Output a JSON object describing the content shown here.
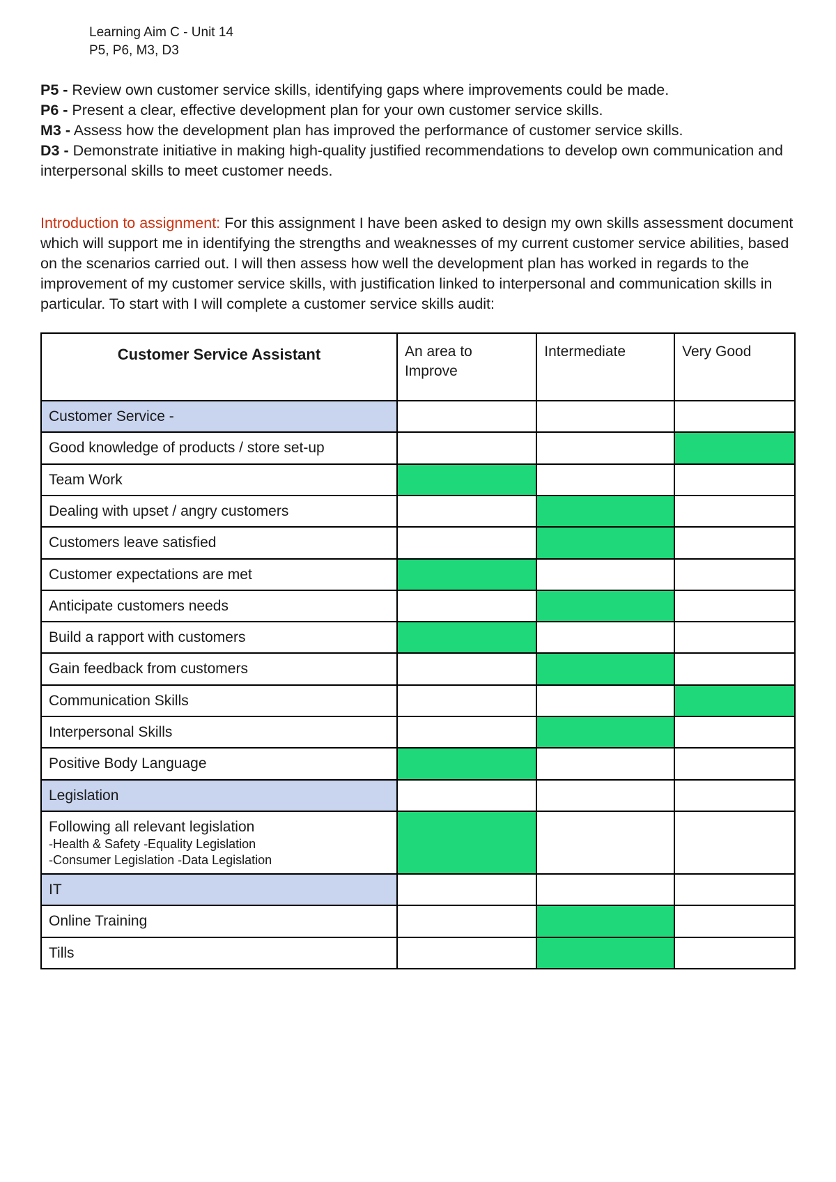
{
  "header": {
    "line1": "Learning Aim C - Unit 14",
    "line2": "P5, P6, M3, D3"
  },
  "criteria": [
    {
      "code": "P5 -",
      "text": " Review own customer service skills, identifying gaps where improvements could be made."
    },
    {
      "code": "P6 -",
      "text": " Present a clear, effective development plan for your own customer service skills."
    },
    {
      "code": "M3 -",
      "text": " Assess how the development plan has improved the performance of customer service skills."
    },
    {
      "code": "D3 -",
      "text": " Demonstrate initiative in making high-quality justified recommendations to develop own communication and interpersonal skills to meet customer needs."
    }
  ],
  "intro": {
    "label": "Introduction to assignment:",
    "text": " For this assignment I have been asked to design my own skills assessment document which will support me in identifying the strengths and weaknesses of my current customer service abilities, based on the scenarios carried out. I will then assess how well the development plan has worked in regards to the improvement of my customer service skills, with justification linked to interpersonal and communication skills in particular. To start with I will complete a customer service skills audit:"
  },
  "table": {
    "title": "Customer Service Assistant",
    "columns": [
      "An area to Improve",
      "Intermediate",
      "Very Good"
    ],
    "colors": {
      "section_bg": "#c9d4ee",
      "highlight_bg": "#1fd87a",
      "border": "#000000"
    },
    "rows": [
      {
        "label": "Customer Service -",
        "section": true,
        "ratings": [
          false,
          false,
          false
        ]
      },
      {
        "label": "Good knowledge of products / store set-up",
        "section": false,
        "ratings": [
          false,
          false,
          true
        ]
      },
      {
        "label": "Team Work",
        "section": false,
        "ratings": [
          true,
          false,
          false
        ]
      },
      {
        "label": "Dealing with upset / angry customers",
        "section": false,
        "ratings": [
          false,
          true,
          false
        ]
      },
      {
        "label": "Customers leave satisfied",
        "section": false,
        "ratings": [
          false,
          true,
          false
        ]
      },
      {
        "label": "Customer expectations are met",
        "section": false,
        "ratings": [
          true,
          false,
          false
        ]
      },
      {
        "label": "Anticipate customers needs",
        "section": false,
        "ratings": [
          false,
          true,
          false
        ]
      },
      {
        "label": "Build a rapport with customers",
        "section": false,
        "ratings": [
          true,
          false,
          false
        ]
      },
      {
        "label": "Gain feedback from customers",
        "section": false,
        "ratings": [
          false,
          true,
          false
        ]
      },
      {
        "label": "Communication Skills",
        "section": false,
        "ratings": [
          false,
          false,
          true
        ]
      },
      {
        "label": "Interpersonal Skills",
        "section": false,
        "ratings": [
          false,
          true,
          false
        ]
      },
      {
        "label": "Positive Body Language",
        "section": false,
        "ratings": [
          true,
          false,
          false
        ]
      },
      {
        "label": "Legislation",
        "section": true,
        "ratings": [
          false,
          false,
          false
        ]
      },
      {
        "label": "Following all relevant legislation",
        "sub1": "-Health & Safety  -Equality Legislation",
        "sub2": "-Consumer Legislation  -Data Legislation",
        "section": false,
        "ratings": [
          true,
          false,
          false
        ]
      },
      {
        "label": "IT",
        "section": true,
        "ratings": [
          false,
          false,
          false
        ]
      },
      {
        "label": "Online Training",
        "section": false,
        "ratings": [
          false,
          true,
          false
        ]
      },
      {
        "label": "Tills",
        "section": false,
        "ratings": [
          false,
          true,
          false
        ]
      }
    ]
  }
}
